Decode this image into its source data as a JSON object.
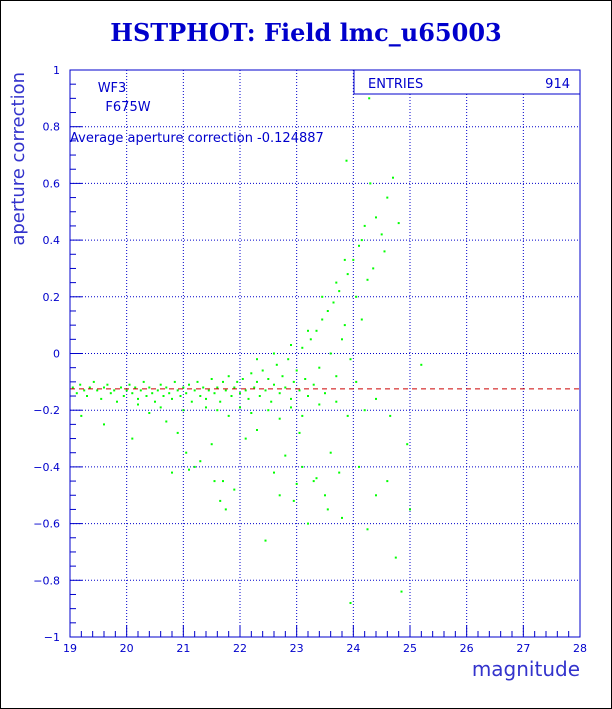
{
  "title": "HSTPHOT: Field lmc_u65003",
  "chart_data": {
    "type": "scatter",
    "title": "HSTPHOT: Field lmc_u65003",
    "xlabel": "magnitude",
    "ylabel": "aperture correction",
    "xlim": [
      19,
      28
    ],
    "ylim": [
      -1,
      1
    ],
    "x_ticks": [
      "19",
      "20",
      "21",
      "22",
      "23",
      "24",
      "25",
      "26",
      "27",
      "28"
    ],
    "y_ticks": [
      "-1",
      "-0.8",
      "-0.6",
      "-0.4",
      "-0.2",
      "0",
      "0.2",
      "0.4",
      "0.6",
      "0.8",
      "1"
    ],
    "grid": true,
    "annotations": {
      "camera": "WF3",
      "filter": "F675W",
      "average_label": "Average aperture correction -0.124887"
    },
    "stats": {
      "entries_label": "ENTRIES",
      "entries_value": "914"
    },
    "average_line": -0.124887,
    "colors": {
      "points": "#00ff00",
      "grid": "#0000cc",
      "average_line": "#cc0000",
      "text": "#0000cc"
    },
    "points": [
      [
        19.05,
        -0.12
      ],
      [
        19.12,
        -0.14
      ],
      [
        19.18,
        -0.11
      ],
      [
        19.25,
        -0.13
      ],
      [
        19.3,
        -0.15
      ],
      [
        19.35,
        -0.12
      ],
      [
        19.42,
        -0.1
      ],
      [
        19.48,
        -0.13
      ],
      [
        19.55,
        -0.16
      ],
      [
        19.6,
        -0.12
      ],
      [
        19.66,
        -0.11
      ],
      [
        19.72,
        -0.14
      ],
      [
        19.78,
        -0.13
      ],
      [
        19.83,
        -0.17
      ],
      [
        19.9,
        -0.12
      ],
      [
        19.95,
        -0.15
      ],
      [
        20.0,
        -0.13
      ],
      [
        20.05,
        -0.11
      ],
      [
        20.1,
        -0.14
      ],
      [
        20.15,
        -0.12
      ],
      [
        20.2,
        -0.16
      ],
      [
        20.25,
        -0.13
      ],
      [
        20.3,
        -0.1
      ],
      [
        20.35,
        -0.15
      ],
      [
        20.4,
        -0.12
      ],
      [
        20.45,
        -0.14
      ],
      [
        20.5,
        -0.17
      ],
      [
        20.55,
        -0.13
      ],
      [
        20.6,
        -0.11
      ],
      [
        20.65,
        -0.15
      ],
      [
        20.7,
        -0.12
      ],
      [
        20.75,
        -0.14
      ],
      [
        20.8,
        -0.16
      ],
      [
        20.85,
        -0.1
      ],
      [
        20.9,
        -0.13
      ],
      [
        20.95,
        -0.15
      ],
      [
        21.0,
        -0.12
      ],
      [
        21.05,
        -0.14
      ],
      [
        21.1,
        -0.11
      ],
      [
        21.15,
        -0.17
      ],
      [
        21.2,
        -0.13
      ],
      [
        21.25,
        -0.1
      ],
      [
        21.3,
        -0.15
      ],
      [
        21.35,
        -0.12
      ],
      [
        21.4,
        -0.16
      ],
      [
        21.45,
        -0.13
      ],
      [
        21.5,
        -0.09
      ],
      [
        21.55,
        -0.14
      ],
      [
        21.6,
        -0.12
      ],
      [
        21.65,
        -0.17
      ],
      [
        21.7,
        -0.1
      ],
      [
        21.75,
        -0.13
      ],
      [
        21.8,
        -0.08
      ],
      [
        21.85,
        -0.15
      ],
      [
        21.9,
        -0.12
      ],
      [
        21.95,
        -0.1
      ],
      [
        22.0,
        -0.14
      ],
      [
        22.05,
        -0.09
      ],
      [
        22.1,
        -0.13
      ],
      [
        22.15,
        -0.16
      ],
      [
        22.2,
        -0.07
      ],
      [
        22.25,
        -0.12
      ],
      [
        22.3,
        -0.1
      ],
      [
        22.35,
        -0.15
      ],
      [
        22.4,
        -0.06
      ],
      [
        22.45,
        -0.13
      ],
      [
        22.5,
        -0.09
      ],
      [
        22.55,
        -0.17
      ],
      [
        22.6,
        -0.11
      ],
      [
        22.65,
        -0.04
      ],
      [
        22.7,
        -0.14
      ],
      [
        22.75,
        -0.08
      ],
      [
        22.8,
        -0.12
      ],
      [
        22.85,
        -0.02
      ],
      [
        22.9,
        -0.16
      ],
      [
        22.95,
        -0.1
      ],
      [
        23.0,
        -0.06
      ],
      [
        23.05,
        -0.13
      ],
      [
        23.1,
        0.02
      ],
      [
        23.15,
        -0.09
      ],
      [
        23.2,
        -0.15
      ],
      [
        23.25,
        0.05
      ],
      [
        23.3,
        -0.11
      ],
      [
        23.35,
        0.08
      ],
      [
        23.4,
        -0.05
      ],
      [
        23.45,
        0.12
      ],
      [
        23.5,
        -0.14
      ],
      [
        23.55,
        0.15
      ],
      [
        23.6,
        0.0
      ],
      [
        23.65,
        0.18
      ],
      [
        23.7,
        -0.08
      ],
      [
        23.75,
        0.22
      ],
      [
        23.8,
        0.05
      ],
      [
        23.85,
        0.1
      ],
      [
        23.9,
        0.28
      ],
      [
        23.95,
        -0.02
      ],
      [
        24.0,
        0.33
      ],
      [
        24.05,
        0.2
      ],
      [
        24.1,
        0.38
      ],
      [
        24.15,
        0.12
      ],
      [
        24.2,
        0.45
      ],
      [
        24.25,
        0.26
      ],
      [
        24.3,
        0.6
      ],
      [
        24.35,
        0.3
      ],
      [
        24.4,
        0.48
      ],
      [
        24.5,
        0.42
      ],
      [
        24.6,
        0.55
      ],
      [
        24.7,
        0.62
      ],
      [
        24.8,
        0.46
      ],
      [
        24.28,
        0.9
      ],
      [
        23.88,
        0.68
      ],
      [
        24.55,
        0.36
      ],
      [
        19.2,
        -0.22
      ],
      [
        19.6,
        -0.25
      ],
      [
        20.1,
        -0.3
      ],
      [
        20.4,
        -0.21
      ],
      [
        20.7,
        -0.24
      ],
      [
        20.9,
        -0.28
      ],
      [
        21.05,
        -0.35
      ],
      [
        21.2,
        -0.4
      ],
      [
        21.3,
        -0.38
      ],
      [
        21.5,
        -0.32
      ],
      [
        21.7,
        -0.45
      ],
      [
        21.75,
        -0.55
      ],
      [
        21.9,
        -0.48
      ],
      [
        22.1,
        -0.3
      ],
      [
        22.3,
        -0.27
      ],
      [
        22.45,
        -0.66
      ],
      [
        22.6,
        -0.42
      ],
      [
        22.8,
        -0.36
      ],
      [
        22.95,
        -0.52
      ],
      [
        23.05,
        -0.28
      ],
      [
        23.2,
        -0.6
      ],
      [
        23.35,
        -0.44
      ],
      [
        23.5,
        -0.5
      ],
      [
        23.6,
        -0.35
      ],
      [
        23.8,
        -0.58
      ],
      [
        23.95,
        -0.88
      ],
      [
        24.1,
        -0.4
      ],
      [
        24.25,
        -0.62
      ],
      [
        24.4,
        -0.5
      ],
      [
        24.6,
        -0.45
      ],
      [
        24.75,
        -0.72
      ],
      [
        24.85,
        -0.84
      ],
      [
        25.0,
        -0.55
      ],
      [
        24.95,
        -0.32
      ],
      [
        25.2,
        -0.04
      ],
      [
        24.65,
        -0.22
      ],
      [
        24.4,
        -0.16
      ],
      [
        24.2,
        -0.2
      ],
      [
        24.05,
        -0.1
      ],
      [
        23.9,
        -0.22
      ],
      [
        21.6,
        -0.2
      ],
      [
        21.8,
        -0.22
      ],
      [
        22.0,
        -0.19
      ],
      [
        22.2,
        -0.21
      ],
      [
        22.5,
        -0.2
      ],
      [
        22.7,
        -0.23
      ],
      [
        22.9,
        -0.19
      ],
      [
        23.1,
        -0.22
      ],
      [
        20.2,
        -0.18
      ],
      [
        20.6,
        -0.19
      ],
      [
        21.0,
        -0.2
      ],
      [
        21.4,
        -0.19
      ],
      [
        23.4,
        -0.18
      ],
      [
        23.7,
        -0.17
      ],
      [
        20.8,
        -0.42
      ],
      [
        23.0,
        -0.46
      ],
      [
        22.3,
        -0.02
      ],
      [
        22.6,
        0.0
      ],
      [
        22.9,
        0.03
      ],
      [
        23.2,
        0.08
      ],
      [
        23.45,
        0.2
      ],
      [
        23.7,
        0.25
      ],
      [
        23.85,
        0.33
      ],
      [
        24.15,
        0.4
      ],
      [
        23.3,
        -0.45
      ],
      [
        23.55,
        -0.55
      ],
      [
        23.75,
        -0.42
      ],
      [
        23.1,
        -0.4
      ],
      [
        22.7,
        -0.5
      ],
      [
        21.55,
        -0.45
      ],
      [
        21.65,
        -0.52
      ],
      [
        21.1,
        -0.41
      ]
    ]
  }
}
